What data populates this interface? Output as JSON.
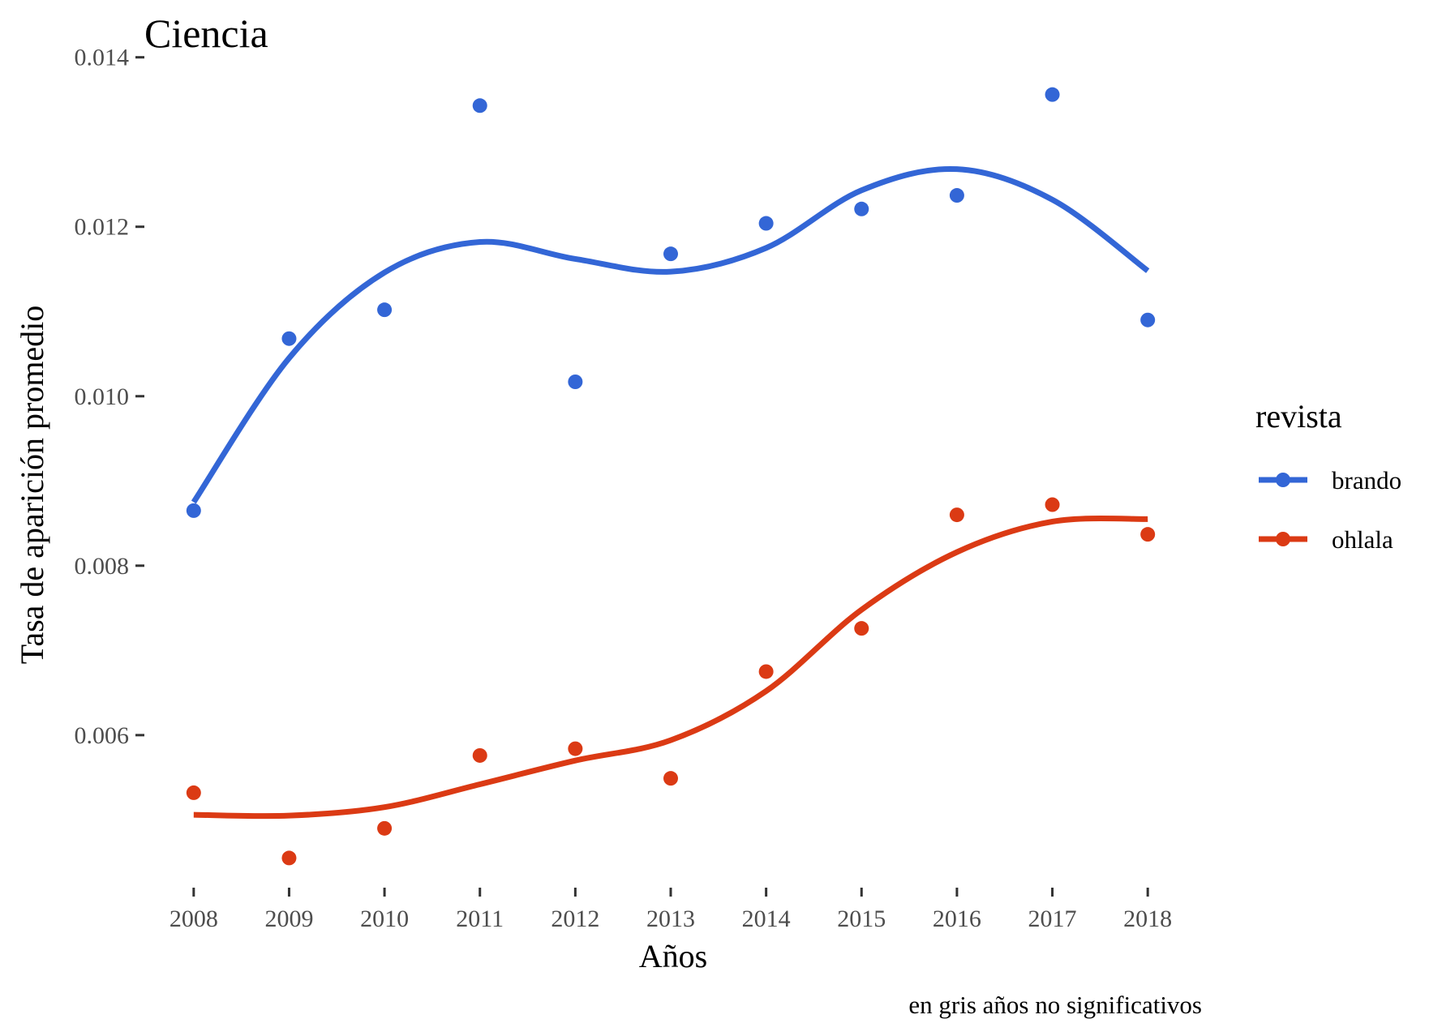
{
  "chart_data": {
    "type": "scatter",
    "title": "Ciencia",
    "xlabel": "Años",
    "ylabel": "Tasa de aparición promedio",
    "caption": "en gris años no significativos",
    "x": [
      2008,
      2009,
      2010,
      2011,
      2012,
      2013,
      2014,
      2015,
      2016,
      2017,
      2018
    ],
    "x_ticks": [
      "2008",
      "2009",
      "2010",
      "2011",
      "2012",
      "2013",
      "2014",
      "2015",
      "2016",
      "2017",
      "2018"
    ],
    "y_ticks": [
      "0.006",
      "0.008",
      "0.010",
      "0.012",
      "0.014"
    ],
    "xlim": [
      2007.5,
      2018.5
    ],
    "ylim": [
      0.0042,
      0.01415
    ],
    "grid": false,
    "legend": {
      "title": "revista",
      "placement": "right"
    },
    "series": [
      {
        "name": "brando",
        "color": "#3366d6",
        "points": [
          0.00865,
          0.01068,
          0.01102,
          0.01343,
          0.01017,
          0.01168,
          0.01204,
          0.01221,
          0.01237,
          0.01356,
          0.0109
        ],
        "smooth": [
          0.00875,
          0.01045,
          0.01146,
          0.01182,
          0.01162,
          0.01147,
          0.01175,
          0.01243,
          0.01268,
          0.01232,
          0.01148
        ]
      },
      {
        "name": "ohlala",
        "color": "#db3a14",
        "points": [
          0.00532,
          0.00455,
          0.0049,
          0.00576,
          0.00584,
          0.00549,
          0.00675,
          0.00726,
          0.0086,
          0.00872,
          0.00837
        ],
        "smooth": [
          0.00506,
          0.00505,
          0.00515,
          0.00542,
          0.0057,
          0.00594,
          0.00652,
          0.00748,
          0.00816,
          0.00852,
          0.00855
        ]
      }
    ]
  }
}
